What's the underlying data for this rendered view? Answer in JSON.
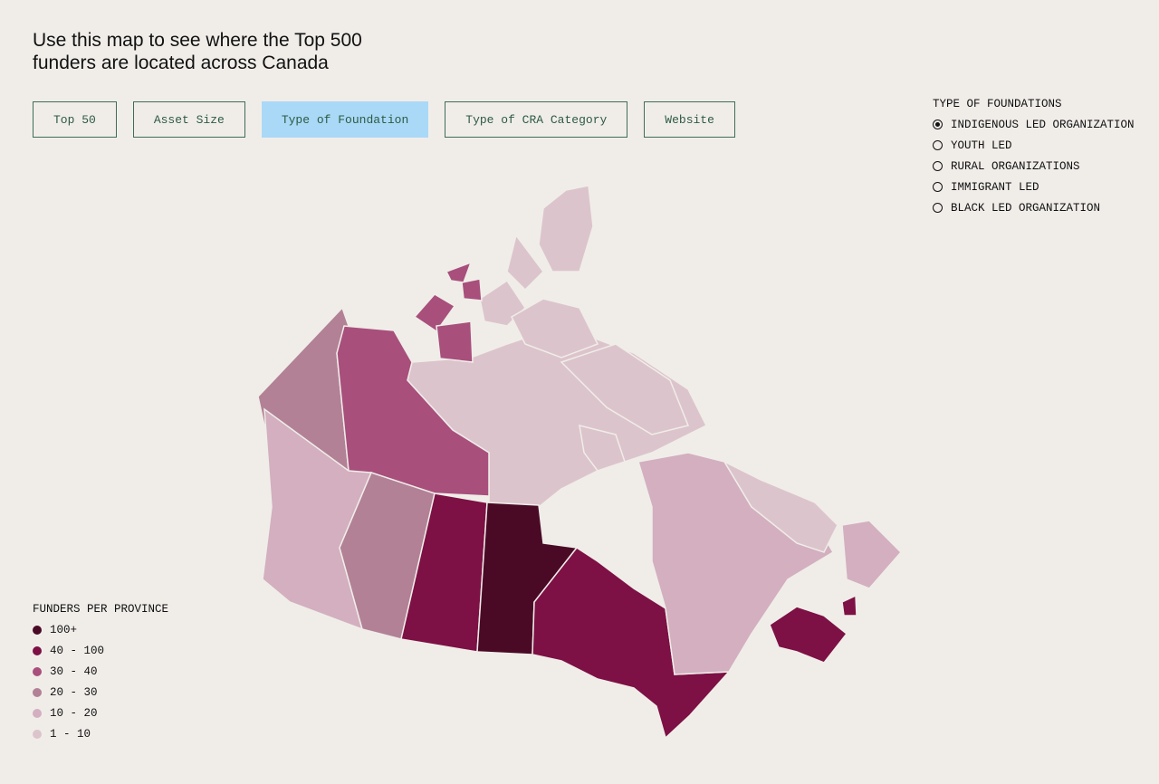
{
  "header": {
    "title_lines": [
      "Use this map to see where the Top 500",
      "funders are located across Canada"
    ]
  },
  "nav": {
    "buttons": [
      "Top 50",
      "Asset Size",
      "Type of Foundation",
      "Type of CRA Category",
      "Website"
    ],
    "active": 2
  },
  "filters": {
    "title": "TYPE OF FOUNDATIONS",
    "options": [
      "INDIGENOUS LED ORGANIZATION",
      "YOUTH LED",
      "RURAL ORGANIZATIONS",
      "IMMIGRANT LED",
      "BLACK LED ORGANIZATION"
    ],
    "selected": 0
  },
  "legend": {
    "title": "FUNDERS PER PROVINCE",
    "items": [
      {
        "label": "100+",
        "color": "#4a0a26"
      },
      {
        "label": "40 - 100",
        "color": "#7d1044"
      },
      {
        "label": "30 - 40",
        "color": "#a84f7c"
      },
      {
        "label": "20 - 30",
        "color": "#b28196"
      },
      {
        "label": "10 - 20",
        "color": "#d3afbf"
      },
      {
        "label": "1 - 10",
        "color": "#dcc4cc"
      }
    ]
  }
}
